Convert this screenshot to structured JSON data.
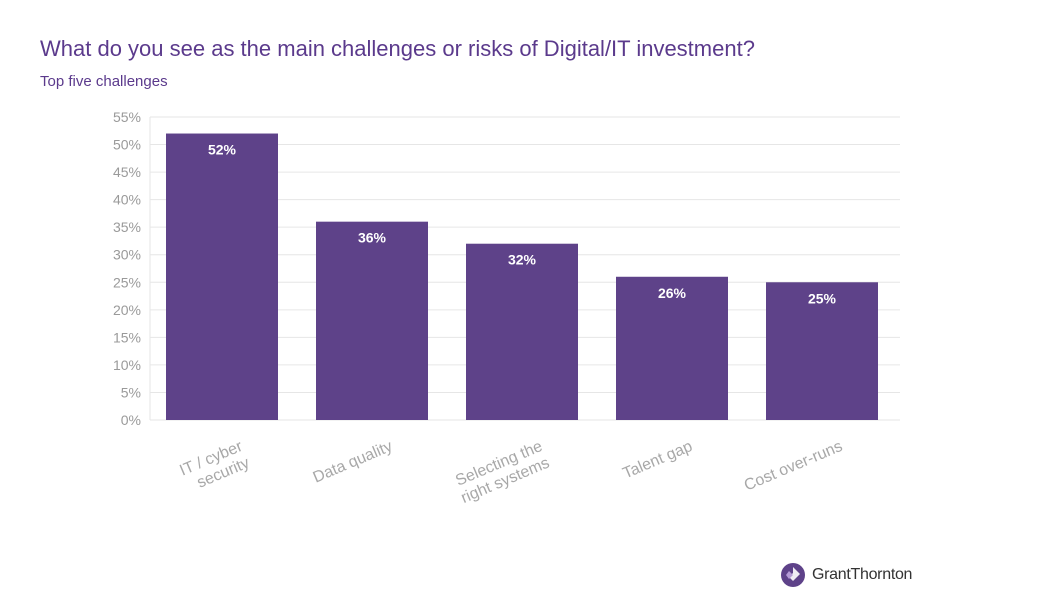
{
  "colors": {
    "bar": "#5e4289",
    "title": "#5b3a8c",
    "grid": "#e6e6e6"
  },
  "logo": {
    "text": "GrantThornton",
    "icon": "grant-thornton-logo-icon"
  },
  "chart_data": {
    "type": "bar",
    "title": "What do you see as the main challenges or risks of Digital/IT investment?",
    "subtitle": "Top five challenges",
    "xlabel": "",
    "ylabel": "",
    "ylim": [
      0,
      55
    ],
    "yticks": [
      "0%",
      "5%",
      "10%",
      "15%",
      "20%",
      "25%",
      "30%",
      "35%",
      "40%",
      "45%",
      "50%",
      "55%"
    ],
    "categories": [
      [
        "IT / cyber",
        "security"
      ],
      [
        "Data quality"
      ],
      [
        "Selecting the",
        "right systems"
      ],
      [
        "Talent gap"
      ],
      [
        "Cost over-runs"
      ]
    ],
    "values": [
      52,
      36,
      32,
      26,
      25
    ],
    "data_labels": [
      "52%",
      "36%",
      "32%",
      "26%",
      "25%"
    ],
    "grid": true,
    "legend": "none"
  }
}
